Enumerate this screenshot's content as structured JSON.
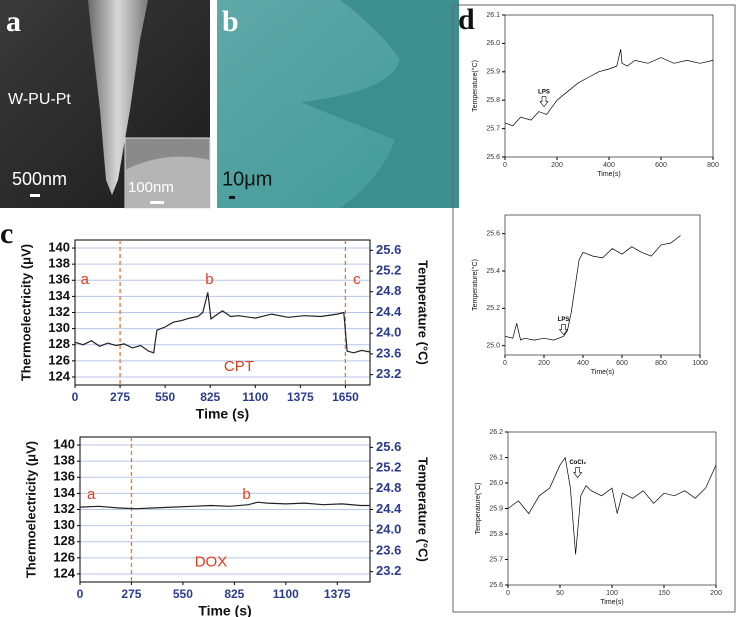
{
  "panels": {
    "a": {
      "label": "a",
      "sample": "W-PU-Pt",
      "scale": "500nm",
      "inset_scale": "100nm"
    },
    "b": {
      "label": "b",
      "scale": "10μm"
    },
    "c": {
      "label": "c"
    },
    "d": {
      "label": "d"
    }
  },
  "chart_data": [
    {
      "type": "line",
      "ylabel": "Thermoelectricity (μV)",
      "y2label": "Temperature (°C)",
      "xlabel": "Time (s)",
      "x": [
        0,
        50,
        100,
        150,
        200,
        250,
        300,
        350,
        400,
        450,
        480,
        500,
        550,
        600,
        650,
        700,
        750,
        780,
        810,
        830,
        870,
        900,
        950,
        1000,
        1100,
        1200,
        1300,
        1400,
        1500,
        1600,
        1640,
        1660,
        1700,
        1750,
        1800
      ],
      "series": [
        {
          "color": "#222222",
          "values": [
            128.3,
            128.0,
            128.5,
            127.8,
            128.2,
            127.9,
            128.1,
            127.6,
            127.9,
            127.2,
            127.0,
            129.8,
            130.2,
            130.8,
            131.0,
            131.3,
            131.5,
            132.0,
            134.5,
            131.2,
            131.8,
            132.2,
            131.5,
            131.6,
            131.3,
            131.8,
            131.4,
            131.6,
            131.5,
            131.8,
            132.0,
            127.2,
            127.0,
            127.3,
            127.1
          ]
        }
      ],
      "xlim": [
        0,
        1800
      ],
      "xticks": [
        0,
        275,
        550,
        825,
        1100,
        1375,
        1650
      ],
      "ylim": [
        123,
        141
      ],
      "yticks": [
        124,
        126,
        128,
        130,
        132,
        134,
        136,
        138,
        140
      ],
      "y2lim": [
        23.0,
        25.8
      ],
      "y2ticks": [
        23.2,
        23.6,
        {
          "value": 24,
          "label": "24.0"
        },
        24.4,
        24.8,
        25.2,
        25.6
      ],
      "grid": true,
      "vlines": [
        275,
        1650
      ],
      "vline_color": "#e8762c",
      "annotation_color": "#e03c1c",
      "annotations": [
        {
          "text": "a",
          "x": 60,
          "y": 136
        },
        {
          "text": "b",
          "x": 820,
          "y": 136
        },
        {
          "text": "c",
          "x": 1720,
          "y": 136
        },
        {
          "text": "CPT",
          "x": 1000,
          "y": 125.2
        }
      ]
    },
    {
      "type": "line",
      "ylabel": "Thermoelectricity (μV)",
      "y2label": "Temperature (°C)",
      "xlabel": "Time (s)",
      "x": [
        0,
        100,
        200,
        300,
        400,
        500,
        600,
        700,
        800,
        900,
        950,
        1000,
        1100,
        1200,
        1300,
        1400,
        1500,
        1550
      ],
      "series": [
        {
          "color": "#222222",
          "values": [
            132.3,
            132.4,
            132.2,
            132.1,
            132.2,
            132.3,
            132.4,
            132.5,
            132.4,
            132.6,
            132.9,
            132.8,
            132.7,
            132.8,
            132.6,
            132.7,
            132.5,
            132.5
          ]
        }
      ],
      "xlim": [
        0,
        1550
      ],
      "xticks": [
        0,
        275,
        550,
        825,
        1100,
        1375
      ],
      "ylim": [
        123,
        141
      ],
      "yticks": [
        124,
        126,
        128,
        130,
        132,
        134,
        136,
        138,
        140
      ],
      "y2lim": [
        23.0,
        25.8
      ],
      "y2ticks": [
        23.2,
        23.6,
        {
          "value": 24,
          "label": "24.0"
        },
        24.4,
        24.8,
        25.2,
        25.6
      ],
      "grid": true,
      "vlines": [
        275
      ],
      "vline_color": "#e8762c",
      "annotation_color": "#e03c1c",
      "annotations": [
        {
          "text": "a",
          "x": 60,
          "y": 133.8
        },
        {
          "text": "b",
          "x": 890,
          "y": 133.8
        },
        {
          "text": "DOX",
          "x": 700,
          "y": 125.4
        }
      ]
    },
    {
      "type": "line",
      "ylabel": "Temperature(°C)",
      "xlabel": "Time(s)",
      "x": [
        0,
        30,
        60,
        100,
        130,
        160,
        200,
        240,
        280,
        320,
        360,
        400,
        430,
        445,
        450,
        470,
        500,
        550,
        600,
        650,
        700,
        750,
        800
      ],
      "series": [
        {
          "color": "#000000",
          "values": [
            25.72,
            25.71,
            25.74,
            25.73,
            25.76,
            25.75,
            25.8,
            25.83,
            25.86,
            25.88,
            25.9,
            25.91,
            25.92,
            25.98,
            25.93,
            25.92,
            25.94,
            25.93,
            25.95,
            25.93,
            25.94,
            25.93,
            25.94
          ]
        }
      ],
      "xlim": [
        0,
        800
      ],
      "xticks": [
        0,
        200,
        400,
        600,
        800
      ],
      "ylim": [
        25.6,
        26.1
      ],
      "yticks": [
        25.6,
        25.7,
        25.8,
        25.9,
        {
          "value": 26,
          "label": "26.0"
        },
        26.1
      ],
      "annotation_color": "#000000",
      "annotation_arrows": true,
      "annotations": [
        {
          "text": "LPS",
          "x": 150,
          "y": 25.83
        }
      ]
    },
    {
      "type": "line",
      "ylabel": "Temperature(°C)",
      "xlabel": "Time(s)",
      "x": [
        0,
        40,
        60,
        80,
        100,
        150,
        200,
        250,
        300,
        320,
        340,
        360,
        380,
        400,
        450,
        500,
        550,
        600,
        650,
        700,
        750,
        800,
        850,
        900
      ],
      "series": [
        {
          "color": "#000000",
          "values": [
            25.05,
            25.04,
            25.12,
            25.03,
            25.04,
            25.03,
            25.04,
            25.03,
            25.05,
            25.08,
            25.18,
            25.32,
            25.46,
            25.5,
            25.48,
            25.47,
            25.52,
            25.49,
            25.53,
            25.5,
            25.48,
            25.54,
            25.55,
            25.59
          ]
        }
      ],
      "xlim": [
        0,
        1000
      ],
      "xticks": [
        0,
        200,
        400,
        600,
        800,
        1000
      ],
      "ylim": [
        24.95,
        25.7
      ],
      "yticks": [
        {
          "value": 25,
          "label": "25.0"
        },
        25.2,
        25.4,
        25.6
      ],
      "annotation_color": "#000000",
      "annotation_arrows": true,
      "annotations": [
        {
          "text": "LPS",
          "x": 300,
          "y": 25.14
        }
      ]
    },
    {
      "type": "line",
      "ylabel": "Temperature(°C)",
      "xlabel": "Time(s)",
      "x": [
        0,
        10,
        20,
        30,
        40,
        50,
        55,
        60,
        65,
        70,
        75,
        80,
        90,
        100,
        105,
        110,
        120,
        130,
        140,
        150,
        160,
        170,
        180,
        190,
        200
      ],
      "series": [
        {
          "color": "#000000",
          "values": [
            25.9,
            25.93,
            25.88,
            25.95,
            25.98,
            26.07,
            26.1,
            25.98,
            25.72,
            25.95,
            25.99,
            25.97,
            25.95,
            25.98,
            25.88,
            25.96,
            25.94,
            25.97,
            25.92,
            25.96,
            25.95,
            25.97,
            25.94,
            25.98,
            26.07
          ]
        }
      ],
      "xlim": [
        0,
        200
      ],
      "xticks": [
        0,
        50,
        100,
        150,
        200
      ],
      "ylim": [
        25.6,
        26.2
      ],
      "yticks": [
        25.6,
        25.7,
        25.8,
        25.9,
        {
          "value": 26,
          "label": "26.0"
        },
        26.1,
        26.2
      ],
      "annotation_color": "#000000",
      "annotation_arrows": true,
      "annotations": [
        {
          "text": "CoCl₂",
          "x": 67,
          "y": 26.08
        }
      ]
    }
  ]
}
